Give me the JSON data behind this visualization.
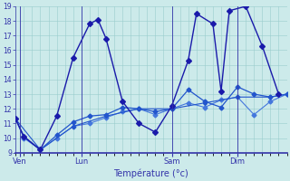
{
  "background_color": "#cceaea",
  "grid_color": "#99cccc",
  "line_color1": "#1a1aaa",
  "line_color2": "#2255cc",
  "line_color3": "#4477dd",
  "xlabel": "Température (°c)",
  "xlabel_color": "#3333aa",
  "tick_color": "#3333aa",
  "axis_color": "#3333aa",
  "ylim": [
    9,
    19
  ],
  "yticks": [
    9,
    10,
    11,
    12,
    13,
    14,
    15,
    16,
    17,
    18,
    19
  ],
  "day_labels": [
    "Ven",
    "Lun",
    "Sam",
    "Dim"
  ],
  "num_points": 34,
  "xlim": [
    0,
    33
  ],
  "series1_x": [
    0,
    1,
    3,
    5,
    7,
    9,
    10,
    11,
    13,
    15,
    17,
    19,
    21,
    22,
    24,
    25,
    26,
    28,
    30,
    32
  ],
  "series1_y": [
    11.3,
    10.1,
    9.2,
    11.5,
    15.5,
    17.8,
    18.1,
    16.8,
    12.5,
    11.0,
    10.4,
    12.2,
    15.3,
    18.5,
    17.8,
    13.2,
    18.7,
    19.0,
    16.3,
    13.0
  ],
  "series2_x": [
    0,
    1,
    3,
    5,
    7,
    9,
    11,
    13,
    15,
    17,
    19,
    21,
    23,
    25,
    27,
    29,
    31,
    33
  ],
  "series2_y": [
    11.3,
    10.1,
    9.2,
    10.2,
    11.1,
    11.5,
    11.6,
    12.1,
    12.0,
    11.8,
    12.0,
    13.3,
    12.5,
    12.1,
    13.5,
    13.0,
    12.8,
    13.0
  ],
  "series3_x": [
    0,
    1,
    3,
    5,
    7,
    9,
    11,
    13,
    15,
    17,
    19,
    21,
    23,
    25,
    27,
    29,
    31,
    33
  ],
  "series3_y": [
    11.3,
    10.0,
    9.2,
    10.0,
    10.8,
    11.0,
    11.4,
    11.8,
    12.0,
    11.6,
    12.0,
    12.4,
    12.1,
    12.6,
    12.8,
    11.6,
    12.5,
    13.0
  ],
  "series4_x": [
    0,
    3,
    7,
    11,
    15,
    19,
    23,
    27,
    31,
    33
  ],
  "series4_y": [
    11.3,
    9.2,
    10.8,
    11.5,
    12.0,
    12.0,
    12.4,
    12.8,
    12.8,
    13.0
  ],
  "xtick_positions": [
    0.5,
    8,
    19,
    27
  ],
  "xtick_line_positions": [
    0.5,
    8,
    19,
    27
  ]
}
